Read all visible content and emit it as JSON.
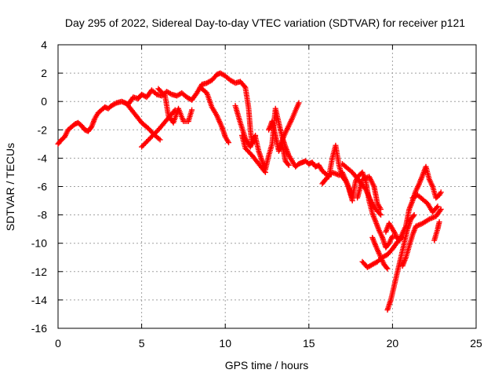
{
  "chart_data": {
    "type": "scatter",
    "title": "Day 295 of 2022, Sidereal Day-to-day VTEC variation (SDTVAR) for receiver p121",
    "xlabel": "GPS time / hours",
    "ylabel": "SDTVAR / TECUs",
    "xlim": [
      0,
      25
    ],
    "ylim": [
      -16,
      4
    ],
    "xticks": [
      0,
      5,
      10,
      15,
      20,
      25
    ],
    "yticks": [
      -16,
      -14,
      -12,
      -10,
      -8,
      -6,
      -4,
      -2,
      0,
      2,
      4
    ],
    "grid": true,
    "marker": "+",
    "color": "#ff0000",
    "series": [
      {
        "name": "SDTVAR",
        "trace": [
          [
            0.0,
            -3.0
          ],
          [
            0.2,
            -2.7
          ],
          [
            0.4,
            -2.5
          ],
          [
            0.6,
            -2.0
          ],
          [
            0.8,
            -1.8
          ],
          [
            1.0,
            -1.6
          ],
          [
            1.2,
            -1.5
          ],
          [
            1.4,
            -1.7
          ],
          [
            1.6,
            -2.0
          ],
          [
            1.8,
            -2.1
          ],
          [
            2.0,
            -1.8
          ],
          [
            2.2,
            -1.2
          ],
          [
            2.4,
            -0.8
          ],
          [
            2.6,
            -0.6
          ],
          [
            2.8,
            -0.4
          ],
          [
            3.0,
            -0.5
          ],
          [
            3.2,
            -0.3
          ],
          [
            3.5,
            -0.1
          ],
          [
            3.8,
            0.0
          ],
          [
            4.0,
            -0.1
          ],
          [
            4.2,
            -0.2
          ],
          [
            4.5,
            0.3
          ],
          [
            4.8,
            0.2
          ],
          [
            5.0,
            0.5
          ],
          [
            5.3,
            0.3
          ],
          [
            5.6,
            0.8
          ],
          [
            5.9,
            0.5
          ],
          [
            6.2,
            0.4
          ],
          [
            6.5,
            0.7
          ],
          [
            6.8,
            0.5
          ],
          [
            7.1,
            0.4
          ],
          [
            7.4,
            0.6
          ],
          [
            7.7,
            0.3
          ],
          [
            8.0,
            0.1
          ],
          [
            8.3,
            0.6
          ],
          [
            8.6,
            1.2
          ],
          [
            8.9,
            1.3
          ],
          [
            9.2,
            1.5
          ],
          [
            9.5,
            1.9
          ],
          [
            9.7,
            2.0
          ],
          [
            10.0,
            1.8
          ],
          [
            10.3,
            1.5
          ],
          [
            10.6,
            1.3
          ],
          [
            10.9,
            1.4
          ],
          [
            11.2,
            1.0
          ],
          [
            11.4,
            -0.5
          ],
          [
            11.5,
            -2.0
          ],
          [
            11.6,
            -3.0
          ],
          [
            11.8,
            -2.5
          ],
          [
            12.0,
            -3.5
          ],
          [
            12.2,
            -4.2
          ],
          [
            12.4,
            -4.8
          ],
          [
            12.6,
            -3.8
          ],
          [
            12.8,
            -3.0
          ],
          [
            13.0,
            -0.5
          ],
          [
            13.2,
            -1.5
          ],
          [
            13.4,
            -2.5
          ],
          [
            13.6,
            -3.2
          ],
          [
            13.8,
            -3.8
          ],
          [
            14.0,
            -4.2
          ],
          [
            14.2,
            -4.6
          ],
          [
            14.4,
            -4.4
          ],
          [
            14.6,
            -4.3
          ],
          [
            14.8,
            -4.2
          ],
          [
            15.0,
            -4.4
          ],
          [
            15.2,
            -4.3
          ],
          [
            15.4,
            -4.6
          ],
          [
            15.6,
            -4.5
          ],
          [
            15.8,
            -4.9
          ],
          [
            16.0,
            -5.1
          ],
          [
            16.2,
            -5.3
          ],
          [
            16.4,
            -4.0
          ],
          [
            16.6,
            -3.1
          ],
          [
            16.8,
            -4.5
          ],
          [
            17.0,
            -5.3
          ],
          [
            17.2,
            -5.6
          ],
          [
            17.4,
            -6.1
          ],
          [
            17.6,
            -6.8
          ],
          [
            17.8,
            -5.6
          ],
          [
            18.0,
            -5.2
          ],
          [
            18.2,
            -5.0
          ],
          [
            18.4,
            -5.6
          ],
          [
            18.6,
            -7.0
          ],
          [
            18.8,
            -7.9
          ],
          [
            19.0,
            -8.5
          ],
          [
            19.2,
            -9.1
          ],
          [
            19.4,
            -9.6
          ],
          [
            19.6,
            -10.3
          ],
          [
            19.8,
            -10.0
          ],
          [
            20.0,
            -9.5
          ],
          [
            20.2,
            -9.5
          ],
          [
            20.4,
            -9.8
          ],
          [
            20.6,
            -9.3
          ],
          [
            20.8,
            -8.8
          ],
          [
            21.0,
            -7.6
          ],
          [
            21.2,
            -7.0
          ],
          [
            21.4,
            -6.3
          ],
          [
            21.6,
            -5.8
          ],
          [
            21.8,
            -5.2
          ],
          [
            22.0,
            -4.6
          ],
          [
            22.2,
            -5.5
          ],
          [
            22.4,
            -6.0
          ],
          [
            22.6,
            -6.8
          ],
          [
            22.8,
            -6.6
          ],
          [
            22.9,
            -6.4
          ]
        ],
        "branches": [
          [
            [
              5.0,
              -3.2
            ],
            [
              5.5,
              -2.6
            ],
            [
              6.0,
              -2.0
            ],
            [
              6.5,
              -1.3
            ],
            [
              7.0,
              -0.6
            ]
          ],
          [
            [
              4.2,
              -0.3
            ],
            [
              4.6,
              -0.9
            ],
            [
              5.0,
              -1.5
            ],
            [
              5.4,
              -1.9
            ],
            [
              5.8,
              -2.4
            ],
            [
              6.1,
              -2.7
            ]
          ],
          [
            [
              6.0,
              0.9
            ],
            [
              6.4,
              0.4
            ],
            [
              6.6,
              -1.0
            ],
            [
              6.9,
              -1.5
            ],
            [
              7.2,
              -0.5
            ],
            [
              7.5,
              -1.4
            ],
            [
              7.8,
              -1.4
            ],
            [
              8.0,
              -0.6
            ]
          ],
          [
            [
              8.5,
              1.0
            ],
            [
              8.9,
              0.6
            ],
            [
              9.2,
              -0.4
            ],
            [
              9.5,
              -1.0
            ],
            [
              9.8,
              -1.8
            ],
            [
              10.0,
              -2.5
            ],
            [
              10.2,
              -2.9
            ]
          ],
          [
            [
              10.6,
              -0.3
            ],
            [
              10.9,
              -1.5
            ],
            [
              11.2,
              -2.6
            ],
            [
              11.5,
              -3.2
            ],
            [
              11.8,
              -2.4
            ]
          ],
          [
            [
              11.0,
              -2.4
            ],
            [
              11.2,
              -3.3
            ],
            [
              11.6,
              -3.8
            ],
            [
              12.0,
              -4.4
            ],
            [
              12.4,
              -5.0
            ]
          ],
          [
            [
              12.6,
              -2.0
            ],
            [
              12.8,
              -1.4
            ],
            [
              13.0,
              -2.4
            ],
            [
              13.2,
              -3.5
            ],
            [
              13.4,
              -3.0
            ],
            [
              13.6,
              -4.2
            ],
            [
              13.8,
              -4.5
            ]
          ],
          [
            [
              13.2,
              -3.3
            ],
            [
              13.6,
              -2.2
            ],
            [
              14.0,
              -1.2
            ],
            [
              14.4,
              -0.1
            ]
          ],
          [
            [
              15.8,
              -5.8
            ],
            [
              16.0,
              -5.5
            ],
            [
              16.4,
              -5.0
            ],
            [
              16.8,
              -5.2
            ],
            [
              17.0,
              -5.0
            ],
            [
              17.3,
              -5.8
            ],
            [
              17.6,
              -7.0
            ]
          ],
          [
            [
              17.9,
              -6.8
            ],
            [
              18.2,
              -5.5
            ],
            [
              18.6,
              -5.3
            ],
            [
              18.9,
              -6.0
            ],
            [
              19.1,
              -7.2
            ],
            [
              19.3,
              -7.6
            ]
          ],
          [
            [
              17.0,
              -4.4
            ],
            [
              17.6,
              -5.0
            ],
            [
              18.0,
              -5.6
            ],
            [
              18.4,
              -6.2
            ],
            [
              18.7,
              -7.0
            ],
            [
              19.0,
              -7.6
            ],
            [
              19.3,
              -8.0
            ]
          ],
          [
            [
              18.2,
              -11.3
            ],
            [
              18.5,
              -11.7
            ],
            [
              18.8,
              -11.5
            ],
            [
              19.1,
              -11.3
            ],
            [
              19.4,
              -11.0
            ],
            [
              19.7,
              -10.8
            ],
            [
              20.0,
              -10.4
            ],
            [
              20.3,
              -9.9
            ],
            [
              20.6,
              -9.6
            ]
          ],
          [
            [
              18.8,
              -9.6
            ],
            [
              19.0,
              -10.2
            ],
            [
              19.3,
              -11.0
            ],
            [
              19.5,
              -11.5
            ],
            [
              19.7,
              -11.8
            ]
          ],
          [
            [
              19.7,
              -14.7
            ],
            [
              19.9,
              -14.0
            ],
            [
              20.1,
              -13.0
            ],
            [
              20.3,
              -12.0
            ],
            [
              20.5,
              -11.0
            ],
            [
              20.7,
              -10.0
            ],
            [
              20.9,
              -9.0
            ],
            [
              21.1,
              -8.3
            ],
            [
              21.3,
              -8.0
            ]
          ],
          [
            [
              20.6,
              -11.6
            ],
            [
              20.8,
              -11.0
            ],
            [
              21.0,
              -10.2
            ],
            [
              21.2,
              -9.4
            ],
            [
              21.4,
              -8.8
            ],
            [
              21.8,
              -8.6
            ],
            [
              22.2,
              -8.3
            ],
            [
              22.6,
              -8.1
            ],
            [
              22.9,
              -7.6
            ]
          ],
          [
            [
              21.2,
              -6.8
            ],
            [
              21.5,
              -6.6
            ],
            [
              21.8,
              -6.9
            ],
            [
              22.1,
              -7.2
            ],
            [
              22.4,
              -7.8
            ],
            [
              22.7,
              -7.4
            ]
          ],
          [
            [
              22.5,
              -9.8
            ],
            [
              22.7,
              -9.0
            ],
            [
              22.8,
              -8.5
            ]
          ],
          [
            [
              19.6,
              -9.2
            ],
            [
              19.8,
              -8.6
            ],
            [
              20.0,
              -9.0
            ],
            [
              20.2,
              -9.4
            ]
          ]
        ]
      }
    ]
  }
}
